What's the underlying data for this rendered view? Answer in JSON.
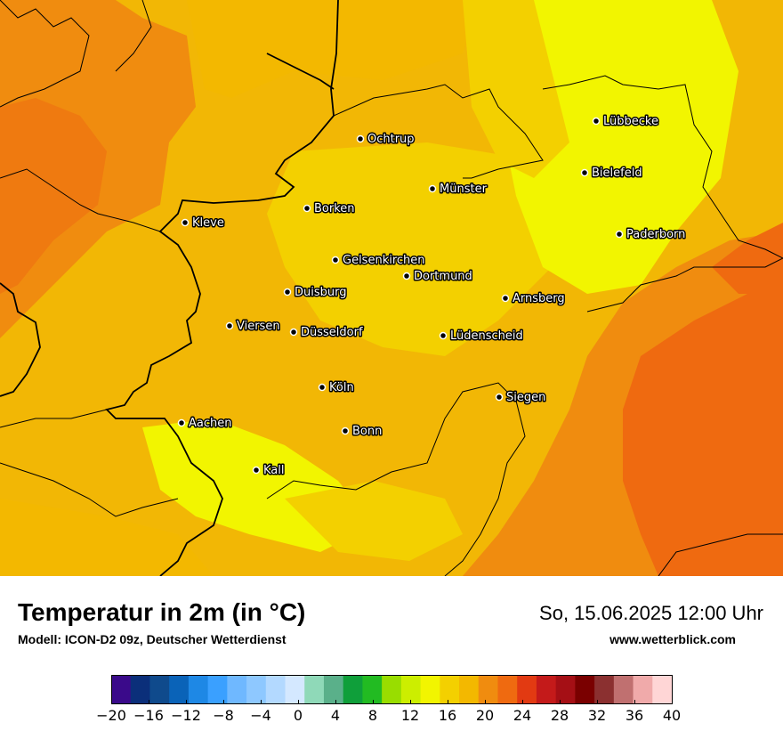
{
  "map": {
    "cities": [
      {
        "name": "Lübbecke"
      },
      {
        "name": "Ochtrup"
      },
      {
        "name": "Bielefeld"
      },
      {
        "name": "Münster"
      },
      {
        "name": "Borken"
      },
      {
        "name": "Kleve"
      },
      {
        "name": "Paderborn"
      },
      {
        "name": "Gelsenkirchen"
      },
      {
        "name": "Dortmund"
      },
      {
        "name": "Duisburg"
      },
      {
        "name": "Arnsberg"
      },
      {
        "name": "Viersen"
      },
      {
        "name": "Düsseldorf"
      },
      {
        "name": "Lüdenscheid"
      },
      {
        "name": "Köln"
      },
      {
        "name": "Siegen"
      },
      {
        "name": "Aachen"
      },
      {
        "name": "Bonn"
      },
      {
        "name": "Kall"
      }
    ]
  },
  "footer": {
    "title": "Temperatur in 2m (in °C)",
    "model": "Modell: ICON-D2 09z, Deutscher Wetterdienst",
    "datetime": "So, 15.06.2025 12:00 Uhr",
    "website": "www.wetterblick.com"
  },
  "legend": {
    "ticks": [
      "−20",
      "−16",
      "−12",
      "−8",
      "−4",
      "0",
      "4",
      "8",
      "12",
      "16",
      "20",
      "24",
      "28",
      "32",
      "36",
      "40"
    ],
    "colors": [
      "#3a0a8a",
      "#0b2f7a",
      "#0f4a8c",
      "#0a63b8",
      "#1e88e5",
      "#3aa0ff",
      "#6fb8ff",
      "#8ec8ff",
      "#b3d9ff",
      "#d4e8ff",
      "#8fd9b8",
      "#5ab08a",
      "#0f9f3a",
      "#22bb22",
      "#99dd00",
      "#ccee00",
      "#f2f500",
      "#f3d000",
      "#f3b800",
      "#f08c0f",
      "#ef6a10",
      "#e23a12",
      "#c41a1a",
      "#a50f15",
      "#7a0000",
      "#8b3030",
      "#c07070",
      "#f0aaaa",
      "#ffd6d6"
    ]
  }
}
